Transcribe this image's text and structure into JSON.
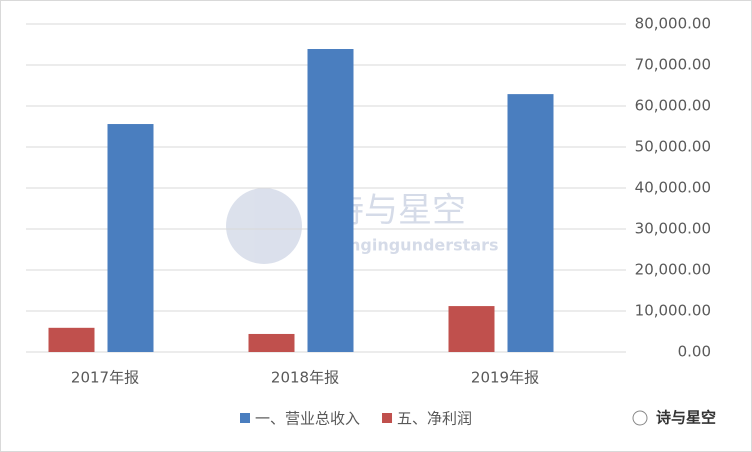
{
  "chart_data": {
    "type": "bar",
    "categories": [
      "2017年报",
      "2018年报",
      "2019年报"
    ],
    "series": [
      {
        "name": "一、营业总收入",
        "color": "#4a7ebf",
        "values": [
          55600,
          73900,
          62900
        ]
      },
      {
        "name": "五、净利润",
        "color": "#c0504d",
        "values": [
          5900,
          4400,
          11200
        ]
      }
    ],
    "ylim": [
      0,
      80000
    ],
    "yticks": [
      {
        "value": 0,
        "label": "0.00"
      },
      {
        "value": 10000,
        "label": "10,000.00"
      },
      {
        "value": 20000,
        "label": "20,000.00"
      },
      {
        "value": 30000,
        "label": "30,000.00"
      },
      {
        "value": 40000,
        "label": "40,000.00"
      },
      {
        "value": 50000,
        "label": "50,000.00"
      },
      {
        "value": 60000,
        "label": "60,000.00"
      },
      {
        "value": 70000,
        "label": "70,000.00"
      },
      {
        "value": 80000,
        "label": "80,000.00"
      }
    ],
    "grid": true,
    "legend": "bottom",
    "annotations": [
      "诗与星空",
      "singingunderstars",
      "诗与星空"
    ]
  }
}
